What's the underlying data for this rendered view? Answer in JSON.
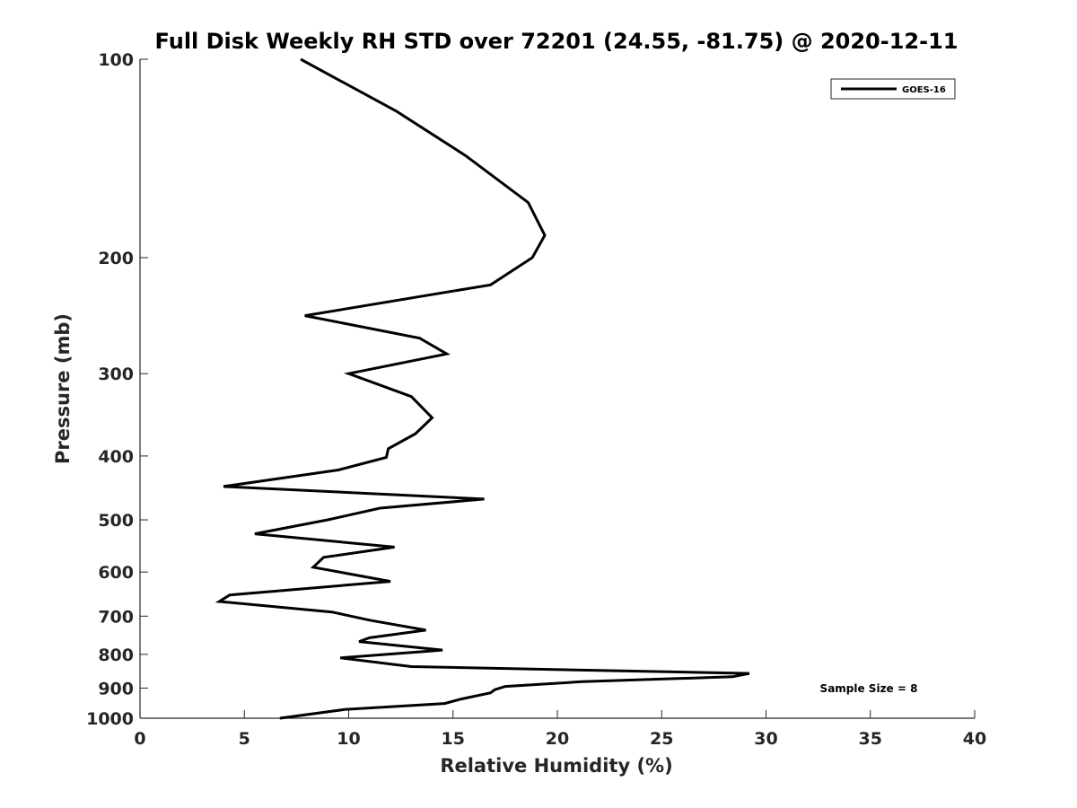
{
  "chart_data": {
    "type": "line",
    "title": "Full Disk Weekly RH STD over 72201 (24.55, -81.75) @ 2020-12-11",
    "xlabel": "Relative Humidity (%)",
    "ylabel": "Pressure (mb)",
    "xlim": [
      0,
      40
    ],
    "ylim": [
      100,
      1000
    ],
    "yscale": "log",
    "y_reversed": true,
    "xticks": [
      0,
      5,
      10,
      15,
      20,
      25,
      30,
      35,
      40
    ],
    "yticks": [
      100,
      200,
      300,
      400,
      500,
      600,
      700,
      800,
      900,
      1000
    ],
    "legend_position": "top-right",
    "annotation": "Sample Size = 8",
    "series": [
      {
        "name": "GOES-16",
        "color": "#000000",
        "x": [
          7.7,
          12.3,
          15.6,
          18.6,
          19.4,
          18.8,
          16.8,
          7.9,
          13.4,
          14.7,
          10.0,
          13.0,
          14.0,
          13.2,
          11.9,
          11.8,
          9.5,
          4.0,
          16.5,
          11.5,
          9.0,
          5.5,
          12.2,
          8.8,
          8.3,
          12.0,
          4.3,
          3.8,
          9.2,
          11.0,
          13.7,
          11.0,
          10.5,
          14.5,
          9.6,
          13.0,
          29.2,
          28.4,
          21.2,
          17.5,
          17.0,
          16.8,
          15.4,
          14.6,
          9.8,
          6.7
        ],
        "y": [
          100,
          120,
          140,
          165,
          185,
          200,
          220,
          245,
          265,
          280,
          300,
          325,
          350,
          370,
          390,
          402,
          420,
          445,
          465,
          480,
          500,
          525,
          550,
          570,
          590,
          620,
          650,
          665,
          690,
          710,
          735,
          755,
          765,
          788,
          810,
          835,
          855,
          865,
          880,
          895,
          905,
          915,
          935,
          950,
          970,
          1000
        ]
      }
    ]
  }
}
